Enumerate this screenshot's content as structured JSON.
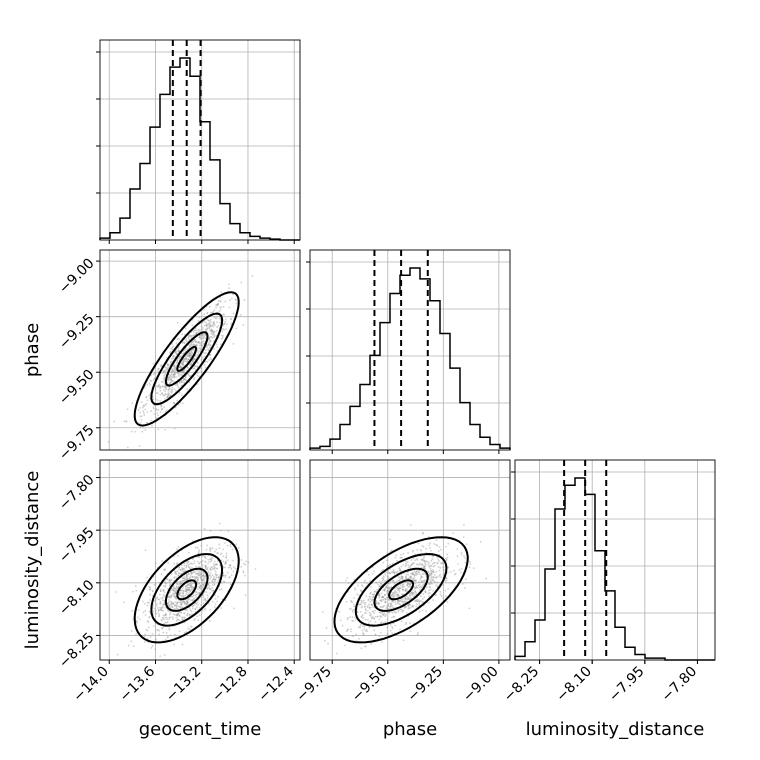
{
  "chart_data": {
    "type": "corner",
    "parameters": [
      {
        "name": "geocent_time",
        "label": "geocent_time",
        "range": [
          -14.08,
          -12.35
        ],
        "ticks": [
          -14.0,
          -13.6,
          -13.2,
          -12.8,
          -12.4
        ],
        "tick_labels": [
          "−14.0",
          "−13.6",
          "−13.2",
          "−12.8",
          "−12.4"
        ],
        "quantiles": [
          -13.45,
          -13.33,
          -13.21
        ],
        "histogram": [
          0.01,
          0.04,
          0.12,
          0.28,
          0.42,
          0.62,
          0.8,
          0.95,
          1.0,
          0.9,
          0.65,
          0.44,
          0.2,
          0.09,
          0.04,
          0.02,
          0.01,
          0.005,
          0.0,
          0.0
        ]
      },
      {
        "name": "phase",
        "label": "phase",
        "range": [
          -9.85,
          -8.95
        ],
        "ticks": [
          -9.75,
          -9.5,
          -9.25,
          -9.0
        ],
        "tick_labels": [
          "−9.75",
          "−9.50",
          "−9.25",
          "−9.00"
        ],
        "quantiles": [
          -9.56,
          -9.44,
          -9.32
        ],
        "histogram": [
          0.01,
          0.02,
          0.06,
          0.14,
          0.24,
          0.36,
          0.52,
          0.7,
          0.86,
          0.96,
          1.0,
          0.94,
          0.82,
          0.64,
          0.45,
          0.26,
          0.14,
          0.07,
          0.03,
          0.01
        ]
      },
      {
        "name": "luminosity_distance",
        "label": "luminosity_distance",
        "range": [
          -8.32,
          -7.75
        ],
        "ticks": [
          -8.25,
          -8.1,
          -7.95,
          -7.8
        ],
        "tick_labels": [
          "−8.25",
          "−8.10",
          "−7.95",
          "−7.80"
        ],
        "quantiles": [
          -8.18,
          -8.12,
          -8.06
        ],
        "histogram": [
          0.02,
          0.1,
          0.22,
          0.5,
          0.83,
          0.96,
          1.0,
          0.91,
          0.6,
          0.38,
          0.18,
          0.07,
          0.03,
          0.01,
          0.01,
          0.0,
          0.0,
          0.0,
          0.0,
          0.0
        ]
      }
    ],
    "pairs": [
      {
        "x": "geocent_time",
        "y": "phase",
        "center": [
          -13.33,
          -9.44
        ],
        "sigma": [
          0.18,
          0.12
        ],
        "corr": 0.85
      },
      {
        "x": "geocent_time",
        "y": "luminosity_distance",
        "center": [
          -13.33,
          -8.12
        ],
        "sigma": [
          0.18,
          0.06
        ],
        "corr": 0.55
      },
      {
        "x": "phase",
        "y": "luminosity_distance",
        "center": [
          -9.44,
          -8.12
        ],
        "sigma": [
          0.12,
          0.06
        ],
        "corr": 0.6
      }
    ],
    "grid": true,
    "colors": {
      "hist": "#000000",
      "points": "#9a9a9a",
      "contour": "#000000"
    }
  }
}
